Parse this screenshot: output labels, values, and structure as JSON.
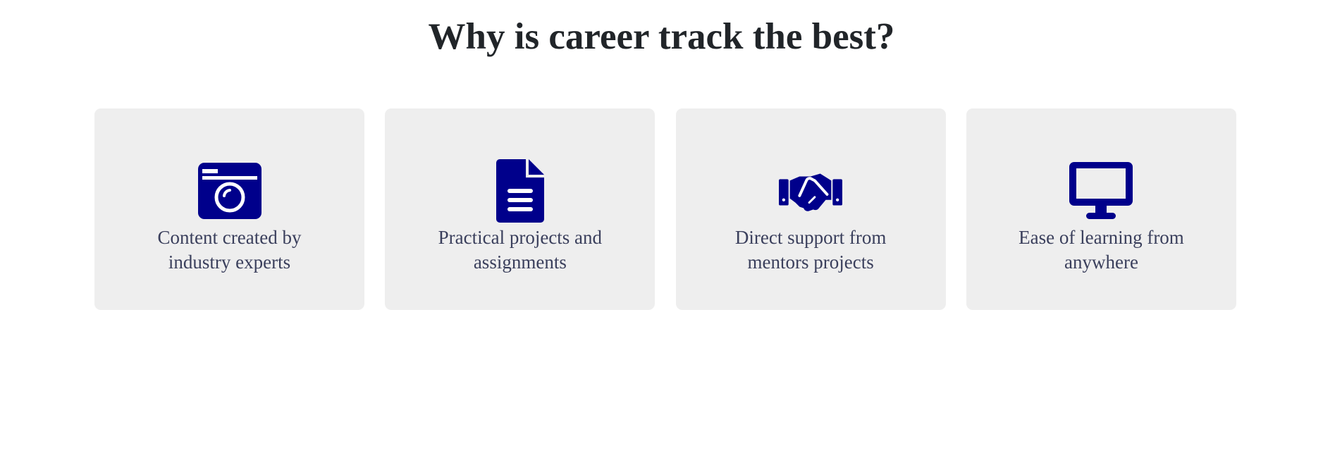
{
  "page": {
    "title": "Why is career track the best?"
  },
  "colors": {
    "icon": "#00008b",
    "card_background": "#eeeeee",
    "title_text": "#212529",
    "card_text": "#3a3f5c"
  },
  "features": [
    {
      "icon": "camera-icon",
      "label": "Content created by industry experts"
    },
    {
      "icon": "document-icon",
      "label": "Practical projects and assignments"
    },
    {
      "icon": "handshake-icon",
      "label": "Direct support from mentors projects"
    },
    {
      "icon": "desktop-icon",
      "label": "Ease of learning from anywhere"
    }
  ]
}
